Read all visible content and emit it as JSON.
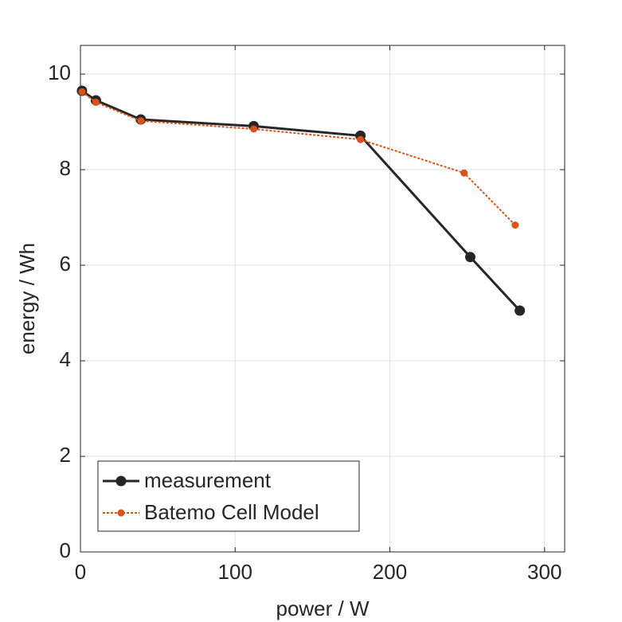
{
  "chart_data": {
    "type": "line",
    "xlabel": "power / W",
    "ylabel": "energy / Wh",
    "xlim": [
      0,
      313
    ],
    "ylim": [
      0,
      10.6
    ],
    "xticks": [
      0,
      100,
      200,
      300
    ],
    "yticks": [
      0,
      2,
      4,
      6,
      8,
      10
    ],
    "grid": true,
    "legend_position": "lower-left",
    "series": [
      {
        "name": "measurement",
        "color": "#262626",
        "style": "solid",
        "x": [
          1,
          10,
          39,
          112,
          181,
          252,
          284
        ],
        "values": [
          9.65,
          9.45,
          9.05,
          8.91,
          8.71,
          6.17,
          5.05
        ]
      },
      {
        "name": "Batemo Cell Model",
        "color": "#d95319",
        "style": "dotted",
        "x": [
          1,
          10,
          39,
          112,
          181,
          248,
          281
        ],
        "values": [
          9.63,
          9.41,
          9.02,
          8.85,
          8.63,
          7.93,
          6.84
        ]
      }
    ]
  }
}
